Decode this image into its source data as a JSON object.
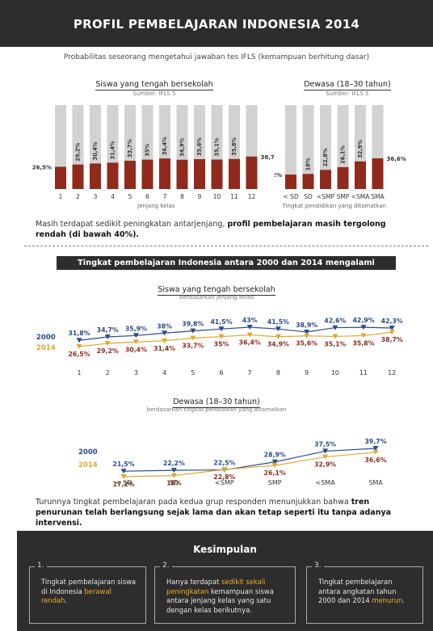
{
  "header": {
    "title": "PROFIL PEMBELAJARAN INDONESIA 2014"
  },
  "intro": {
    "subtitle": "Probabilitas seseorang mengetahui jawaban tes IFLS (kemampuan berhitung dasar)"
  },
  "colors": {
    "bar_bg": "#d2d2d2",
    "bar_fill": "#8f2a1d",
    "line_2000": "#2c4a8c",
    "line_2014": "#e3a72f",
    "label_2014": "#8f2a1d",
    "dark_bg": "#2d2d2d",
    "highlight": "#f0ad2b"
  },
  "chart_data": [
    {
      "type": "bar",
      "title": "Siswa yang tengah bersekolah",
      "subtitle": "Sumber: IFLS 5",
      "xlabel": "Jenjang kelas",
      "categories": [
        "1",
        "2",
        "3",
        "4",
        "5",
        "6",
        "7",
        "8",
        "9",
        "10",
        "11",
        "12"
      ],
      "values": [
        26.5,
        29.2,
        30.4,
        31.4,
        33.7,
        35,
        36.4,
        34.9,
        35.6,
        35.1,
        35.8,
        38.7
      ],
      "labels": [
        "26,5%",
        "29,2%",
        "30,4%",
        "31,4%",
        "33,7%",
        "35%",
        "36,4%",
        "34,9%",
        "35,6%",
        "35,1%",
        "35,8%",
        "38,7%"
      ],
      "ylim": [
        0,
        100
      ]
    },
    {
      "type": "bar",
      "title": "Dewasa (18–30 tahun)",
      "subtitle": "Sumber: IFLS 5",
      "xlabel": "Tingkat pendidikan yang ditamatkan",
      "categories": [
        "< SD",
        "SD",
        "<SMP",
        "SMP",
        "<SMA",
        "SMA"
      ],
      "values": [
        17.2,
        18,
        22.8,
        26.1,
        32.9,
        36.6
      ],
      "labels": [
        "17,2%",
        "18%",
        "22,8%",
        "26,1%",
        "32,9%",
        "36,6%"
      ],
      "ylim": [
        0,
        100
      ]
    },
    {
      "type": "line",
      "title": "Siswa yang tengah bersekolah",
      "subtitle": "berdasarkan jenjang kelas",
      "x": [
        "1",
        "2",
        "3",
        "4",
        "5",
        "6",
        "7",
        "8",
        "9",
        "10",
        "11",
        "12"
      ],
      "series": [
        {
          "name": "2000",
          "values": [
            31.8,
            34.7,
            35.9,
            38,
            39.8,
            41.5,
            43,
            41.5,
            38.9,
            42.6,
            42.9,
            42.3
          ],
          "labels": [
            "31,8%",
            "34,7%",
            "35,9%",
            "38%",
            "39,8%",
            "41,5%",
            "43%",
            "41,5%",
            "38,9%",
            "42,6%",
            "42,9%",
            "42,3%"
          ]
        },
        {
          "name": "2014",
          "values": [
            26.5,
            29.2,
            30.4,
            31.4,
            33.7,
            35,
            36.4,
            34.9,
            35.6,
            35.1,
            35.8,
            38.7
          ],
          "labels": [
            "26,5%",
            "29,2%",
            "30,4%",
            "31,4%",
            "33,7%",
            "35%",
            "36,4%",
            "34,9%",
            "35,6%",
            "35,1%",
            "35,8%",
            "38,7%"
          ]
        }
      ]
    },
    {
      "type": "line",
      "title": "Dewasa (18–30 tahun)",
      "subtitle": "berdasarkan tingkat pendidikan yang ditamatkan",
      "x": [
        "< SD",
        "SD",
        "<SMP",
        "SMP",
        "<SMA",
        "SMA"
      ],
      "series": [
        {
          "name": "2000",
          "values": [
            21.5,
            22.2,
            22.5,
            28.9,
            37.5,
            39.7
          ],
          "labels": [
            "21,5%",
            "22,2%",
            "22,5%",
            "28,9%",
            "37,5%",
            "39,7%"
          ]
        },
        {
          "name": "2014",
          "values": [
            17.2,
            18,
            22.8,
            26.1,
            32.9,
            36.6
          ],
          "labels": [
            "17,2%",
            "18%",
            "22,8%",
            "26,1%",
            "32,9%",
            "36,6%"
          ]
        }
      ]
    }
  ],
  "note1": {
    "text": "Masih terdapat sedikit peningkatan antarjenjang, ",
    "bold": "profil pembelajaran masih tergolong rendah (di bawah 40%)."
  },
  "section2": {
    "banner": "Tingkat pembelajaran Indonesia antara 2000 dan 2014 mengalami penurunan"
  },
  "note2": {
    "text": "Turunnya tingkat pembelajaran pada kedua grup responden menunjukkan bahwa ",
    "bold": "tren penurunan telah berlangsung sejak lama dan akan tetap seperti itu tanpa adanya intervensi."
  },
  "conclusion": {
    "title": "Kesimpulan",
    "items": [
      {
        "num": "1.",
        "pre": "Tingkat pembelajaran siswa di Indonesia ",
        "hl": "berawal rendah",
        "post": "."
      },
      {
        "num": "2.",
        "pre": "Hanya terdapat ",
        "hl": "sedikit sekali peningkatan",
        "post": " kemampuan siswa antara jenjang kelas yang satu dengan kelas berikutnya."
      },
      {
        "num": "3.",
        "pre": "Tingkat pembelajaran antara angkatan tahun 2000 dan 2014 ",
        "hl": "menurun",
        "post": "."
      }
    ]
  }
}
